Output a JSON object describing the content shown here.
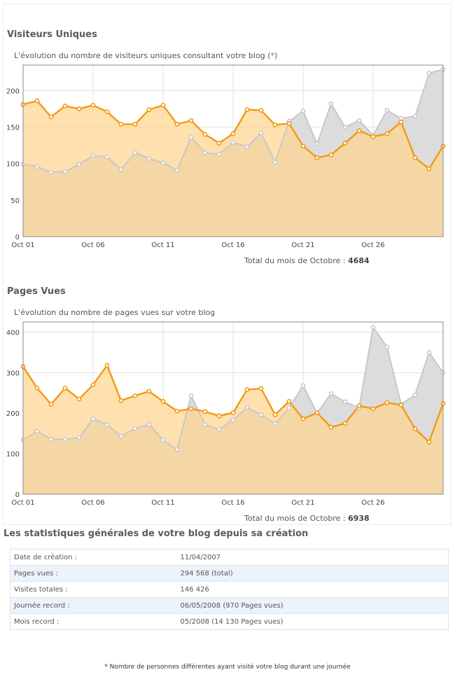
{
  "charts_text": {
    "visitors": {
      "title": "Visiteurs Uniques",
      "subtitle": "L'évolution du nombre de visiteurs uniques consultant votre blog (",
      "subtitle_star": "*",
      "subtitle_end": ")",
      "total_label": "Total du mois de Octobre : ",
      "total_value": "4684"
    },
    "pages": {
      "title": "Pages Vues",
      "subtitle": "L'évolution du nombre de pages vues sur votre blog",
      "total_label": "Total du mois de Octobre : ",
      "total_value": "6938"
    }
  },
  "chart_data": [
    {
      "type": "area",
      "title": "Visiteurs Uniques",
      "xlabel": "",
      "ylabel": "",
      "ylim": [
        0,
        235
      ],
      "yticks": [
        0,
        50,
        100,
        150,
        200
      ],
      "x": [
        "Oct 01",
        "Oct 02",
        "Oct 03",
        "Oct 04",
        "Oct 05",
        "Oct 06",
        "Oct 07",
        "Oct 08",
        "Oct 09",
        "Oct 10",
        "Oct 11",
        "Oct 12",
        "Oct 13",
        "Oct 14",
        "Oct 15",
        "Oct 16",
        "Oct 17",
        "Oct 18",
        "Oct 19",
        "Oct 20",
        "Oct 21",
        "Oct 22",
        "Oct 23",
        "Oct 24",
        "Oct 25",
        "Oct 26",
        "Oct 27",
        "Oct 28",
        "Oct 29",
        "Oct 30",
        "Oct 31"
      ],
      "xtick_labels": [
        "Oct 01",
        "Oct 06",
        "Oct 11",
        "Oct 16",
        "Oct 21",
        "Oct 26"
      ],
      "xtick_index": [
        0,
        5,
        10,
        15,
        20,
        25
      ],
      "grid": true,
      "series": [
        {
          "color": "#c8c8c8",
          "fill": "#dcdcdc",
          "values": [
            99,
            96,
            88,
            89,
            99,
            111,
            109,
            92,
            115,
            107,
            101,
            91,
            136,
            115,
            113,
            129,
            123,
            142,
            102,
            158,
            172,
            127,
            182,
            150,
            159,
            139,
            173,
            162,
            165,
            224,
            229
          ]
        },
        {
          "color": "#f39a12",
          "fill": "#ffd590",
          "values": [
            181,
            186,
            164,
            179,
            175,
            180,
            171,
            154,
            154,
            174,
            180,
            154,
            159,
            140,
            128,
            141,
            174,
            173,
            153,
            155,
            124,
            108,
            112,
            128,
            145,
            137,
            141,
            157,
            108,
            93,
            124
          ]
        }
      ]
    },
    {
      "type": "area",
      "title": "Pages Vues",
      "xlabel": "",
      "ylabel": "",
      "ylim": [
        0,
        425
      ],
      "yticks": [
        0,
        100,
        200,
        300,
        400
      ],
      "x": [
        "Oct 01",
        "Oct 02",
        "Oct 03",
        "Oct 04",
        "Oct 05",
        "Oct 06",
        "Oct 07",
        "Oct 08",
        "Oct 09",
        "Oct 10",
        "Oct 11",
        "Oct 12",
        "Oct 13",
        "Oct 14",
        "Oct 15",
        "Oct 16",
        "Oct 17",
        "Oct 18",
        "Oct 19",
        "Oct 20",
        "Oct 21",
        "Oct 22",
        "Oct 23",
        "Oct 24",
        "Oct 25",
        "Oct 26",
        "Oct 27",
        "Oct 28",
        "Oct 29",
        "Oct 30",
        "Oct 31"
      ],
      "xtick_labels": [
        "Oct 01",
        "Oct 06",
        "Oct 11",
        "Oct 16",
        "Oct 21",
        "Oct 26"
      ],
      "xtick_index": [
        0,
        5,
        10,
        15,
        20,
        25
      ],
      "grid": true,
      "series": [
        {
          "color": "#c8c8c8",
          "fill": "#dcdcdc",
          "values": [
            134,
            155,
            136,
            135,
            140,
            186,
            172,
            143,
            162,
            172,
            134,
            110,
            243,
            172,
            160,
            183,
            214,
            196,
            174,
            213,
            268,
            200,
            248,
            228,
            213,
            412,
            363,
            222,
            245,
            350,
            300
          ]
        },
        {
          "color": "#f39a12",
          "fill": "#ffd590",
          "values": [
            315,
            262,
            222,
            262,
            235,
            270,
            318,
            231,
            243,
            254,
            229,
            205,
            211,
            204,
            193,
            201,
            258,
            261,
            196,
            229,
            186,
            201,
            165,
            175,
            218,
            211,
            226,
            220,
            161,
            129,
            224
          ]
        }
      ]
    }
  ],
  "stats": {
    "title": "Les statistiques générales de votre blog depuis sa création",
    "rows": [
      {
        "label": "Date de création :",
        "value": "11/04/2007"
      },
      {
        "label": "Pages vues :",
        "value": "294 568 (total)"
      },
      {
        "label": "Visites totales :",
        "value": "146 426"
      },
      {
        "label": "Journée record :",
        "value": "06/05/2008 (970 Pages vues)"
      },
      {
        "label": "Mois record :",
        "value": "05/2008 (14 130 Pages vues)"
      }
    ]
  },
  "footnote": "* Nombre de personnes différentes ayant visité votre blog durant une journée"
}
